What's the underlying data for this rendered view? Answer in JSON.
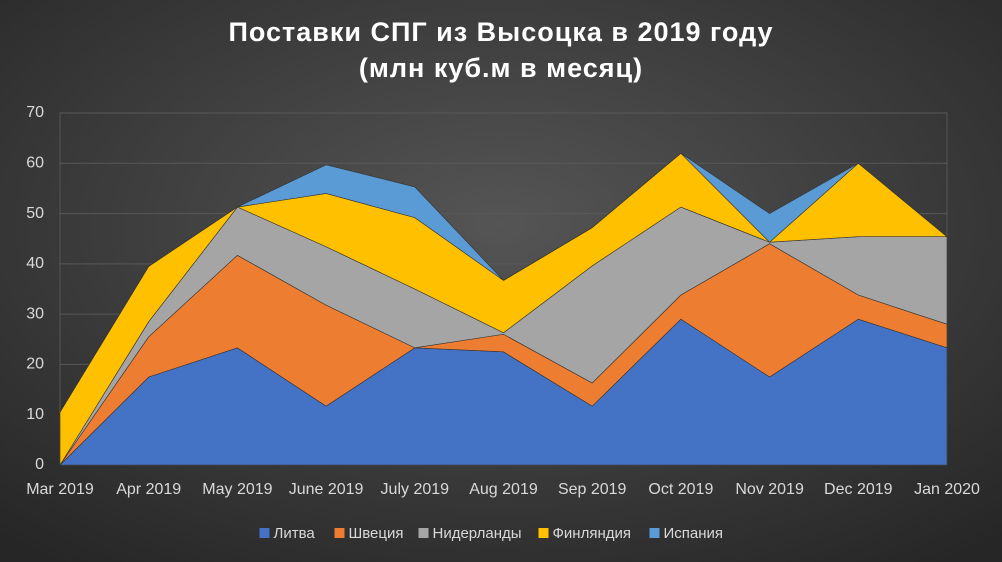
{
  "chart_data": {
    "type": "stacked-area",
    "title": "Поставки СПГ из Высоцка в 2019 году",
    "subtitle": "(млн куб.м в месяц)",
    "categories": [
      "Mar 2019",
      "Apr 2019",
      "May 2019",
      "June 2019",
      "July 2019",
      "Aug 2019",
      "Sep 2019",
      "Oct 2019",
      "Nov 2019",
      "Dec 2019",
      "Jan 2020"
    ],
    "series": [
      {
        "name": "Литва",
        "color": "#4472c4",
        "values": [
          0,
          17.5,
          23.3,
          11.7,
          23.3,
          22.5,
          11.7,
          29,
          17.5,
          29,
          23.3
        ]
      },
      {
        "name": "Швеция",
        "color": "#ed7d31",
        "values": [
          0,
          8,
          18.4,
          20.1,
          0,
          3.5,
          4.6,
          4.8,
          26.5,
          4.8,
          4.7
        ]
      },
      {
        "name": "Нидерланды",
        "color": "#a5a5a5",
        "values": [
          0,
          3,
          9.6,
          11.6,
          11.7,
          0.3,
          23.3,
          17.5,
          0.3,
          11.6,
          17.4
        ]
      },
      {
        "name": "Финляндия",
        "color": "#ffc000",
        "values": [
          10.5,
          11,
          0,
          10.6,
          14.2,
          10.4,
          7.6,
          10.7,
          0,
          14.6,
          0
        ]
      },
      {
        "name": "Испания",
        "color": "#5b9bd5",
        "values": [
          0,
          0,
          0,
          5.7,
          6.1,
          0,
          0,
          0,
          5.7,
          0,
          0
        ]
      }
    ],
    "ylim": [
      0,
      70
    ],
    "yticks": [
      0,
      10,
      20,
      30,
      40,
      50,
      60,
      70
    ],
    "grid": true,
    "legend": "bottom"
  }
}
